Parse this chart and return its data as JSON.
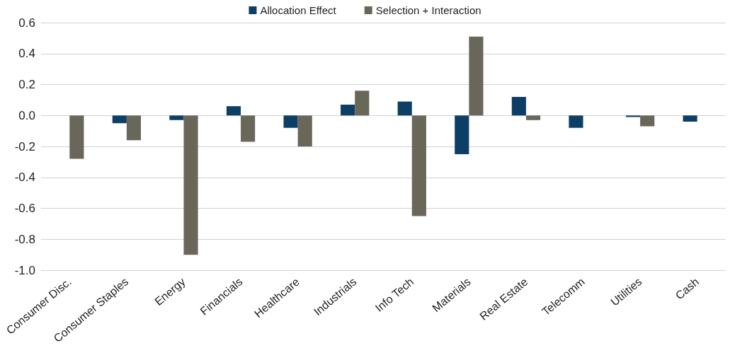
{
  "chart_data": {
    "type": "bar",
    "categories": [
      "Consumer Disc.",
      "Consumer Staples",
      "Energy",
      "Financials",
      "Healthcare",
      "Industrials",
      "Info Tech",
      "Materials",
      "Real Estate",
      "Telecomm",
      "Utilities",
      "Cash"
    ],
    "series": [
      {
        "name": "Allocation Effect",
        "color": "#0d3f66",
        "values": [
          0,
          -0.05,
          -0.03,
          0.06,
          -0.08,
          0.07,
          0.09,
          -0.25,
          0.12,
          -0.08,
          -0.01,
          -0.04
        ]
      },
      {
        "name": "Selection + Interaction",
        "color": "#69665a",
        "values": [
          -0.28,
          -0.16,
          -0.9,
          -0.17,
          -0.2,
          0.16,
          -0.65,
          0.51,
          -0.03,
          0,
          -0.07,
          0
        ]
      }
    ],
    "ylim": [
      -1.0,
      0.6
    ],
    "yticks": [
      {
        "value": -1,
        "label": "-1.0"
      },
      {
        "value": -0.8,
        "label": "-0.8"
      },
      {
        "value": -0.6,
        "label": "-0.6"
      },
      {
        "value": -0.4,
        "label": "-0.4"
      },
      {
        "value": -0.2,
        "label": "-0.2"
      },
      {
        "value": 0,
        "label": "0.0"
      },
      {
        "value": 0.2,
        "label": "0.2"
      },
      {
        "value": 0.4,
        "label": "0.4"
      },
      {
        "value": 0.6,
        "label": "0.6"
      }
    ],
    "grid": "y",
    "legend": "top"
  }
}
